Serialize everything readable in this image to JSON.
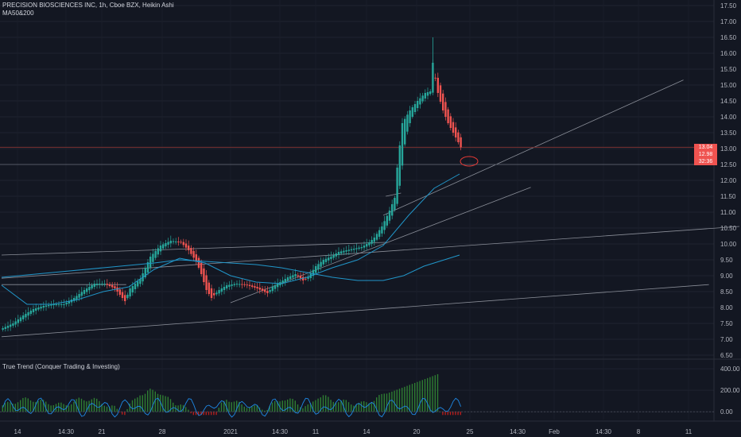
{
  "header": {
    "symbol_line": "PRECISION BIOSCIENCES INC, 1h, Cboe BZX, Heikin Ashi",
    "study_line": "MA50&200",
    "indicator_line": "True Trend (Conquer Trading & Investing)"
  },
  "price_tags": {
    "last": "13.04",
    "second": "12.98",
    "countdown": "32:36"
  },
  "colors": {
    "background": "#131722",
    "up": "#26a69a",
    "down": "#ef5350",
    "ma": "#2196c9",
    "hist_up": "#2e7d32",
    "hist_down": "#b71c1c",
    "osc": "#1e88e5"
  },
  "chart_data": {
    "type": "candlestick",
    "price_axis": {
      "ylim": [
        6.5,
        17.5
      ],
      "ticks": [
        "17.50",
        "17.00",
        "16.50",
        "16.00",
        "15.50",
        "15.00",
        "14.50",
        "14.00",
        "13.50",
        "13.00",
        "12.50",
        "12.00",
        "11.50",
        "11.00",
        "10.50",
        "10.00",
        "9.50",
        "9.00",
        "8.50",
        "8.00",
        "7.50",
        "7.00",
        "6.50"
      ]
    },
    "indicator_axis": {
      "ylim": [
        -50,
        430
      ],
      "ticks": [
        "400.00",
        "200.00",
        "0.00"
      ]
    },
    "time_axis": {
      "labels": [
        "14",
        "14:30",
        "21",
        "28",
        "2021",
        "14:30",
        "11",
        "14",
        "20",
        "25",
        "14:30",
        "Feb",
        "14:30",
        "8",
        "11"
      ]
    },
    "close_series": [
      [
        0,
        7.35
      ],
      [
        4,
        7.5
      ],
      [
        8,
        7.75
      ],
      [
        12,
        7.95
      ],
      [
        16,
        8.05
      ],
      [
        20,
        8.1
      ],
      [
        24,
        8.1
      ],
      [
        28,
        8.3
      ],
      [
        32,
        8.55
      ],
      [
        36,
        8.75
      ],
      [
        40,
        8.75
      ],
      [
        44,
        8.6
      ],
      [
        48,
        8.2
      ],
      [
        50,
        8.6
      ],
      [
        54,
        8.9
      ],
      [
        58,
        9.6
      ],
      [
        62,
        9.95
      ],
      [
        66,
        10.1
      ],
      [
        70,
        10.05
      ],
      [
        73,
        9.8
      ],
      [
        76,
        9.45
      ],
      [
        78,
        9.05
      ],
      [
        80,
        8.55
      ],
      [
        82,
        8.3
      ],
      [
        85,
        8.55
      ],
      [
        88,
        8.7
      ],
      [
        92,
        8.75
      ],
      [
        96,
        8.7
      ],
      [
        100,
        8.6
      ],
      [
        104,
        8.45
      ],
      [
        106,
        8.65
      ],
      [
        109,
        8.8
      ],
      [
        112,
        8.95
      ],
      [
        115,
        9.05
      ],
      [
        118,
        8.85
      ],
      [
        120,
        8.95
      ],
      [
        123,
        9.3
      ],
      [
        126,
        9.5
      ],
      [
        129,
        9.6
      ],
      [
        132,
        9.75
      ],
      [
        135,
        9.8
      ],
      [
        138,
        9.85
      ],
      [
        141,
        9.9
      ],
      [
        144,
        10.05
      ],
      [
        146,
        10.2
      ],
      [
        149,
        10.55
      ],
      [
        152,
        11.05
      ],
      [
        154,
        11.45
      ],
      [
        155,
        12.4
      ],
      [
        157,
        13.8
      ],
      [
        160,
        14.2
      ],
      [
        163,
        14.5
      ],
      [
        166,
        14.75
      ],
      [
        168,
        14.8
      ],
      [
        169,
        15.7
      ],
      [
        171,
        14.75
      ],
      [
        173,
        14.2
      ],
      [
        175,
        13.8
      ],
      [
        177,
        13.5
      ],
      [
        179,
        13.2
      ],
      [
        180,
        13.04
      ]
    ],
    "ma_series": [
      {
        "name": "MA50",
        "points": [
          [
            0,
            8.7
          ],
          [
            10,
            8.1
          ],
          [
            20,
            8.1
          ],
          [
            30,
            8.25
          ],
          [
            40,
            8.5
          ],
          [
            50,
            8.65
          ],
          [
            60,
            9.2
          ],
          [
            70,
            9.55
          ],
          [
            80,
            9.4
          ],
          [
            90,
            9.0
          ],
          [
            100,
            8.8
          ],
          [
            110,
            8.75
          ],
          [
            120,
            8.95
          ],
          [
            130,
            9.25
          ],
          [
            140,
            9.5
          ],
          [
            150,
            9.95
          ],
          [
            160,
            10.9
          ],
          [
            170,
            11.75
          ],
          [
            180,
            12.2
          ]
        ]
      },
      {
        "name": "MA200",
        "points": [
          [
            0,
            8.95
          ],
          [
            20,
            9.1
          ],
          [
            40,
            9.25
          ],
          [
            60,
            9.4
          ],
          [
            70,
            9.5
          ],
          [
            80,
            9.45
          ],
          [
            90,
            9.4
          ],
          [
            100,
            9.35
          ],
          [
            110,
            9.25
          ],
          [
            120,
            9.1
          ],
          [
            130,
            8.95
          ],
          [
            140,
            8.85
          ],
          [
            150,
            8.85
          ],
          [
            158,
            9.0
          ],
          [
            166,
            9.3
          ],
          [
            174,
            9.5
          ],
          [
            180,
            9.65
          ]
        ]
      }
    ],
    "horizontal_lines": [
      13.04,
      12.5
    ]
  }
}
